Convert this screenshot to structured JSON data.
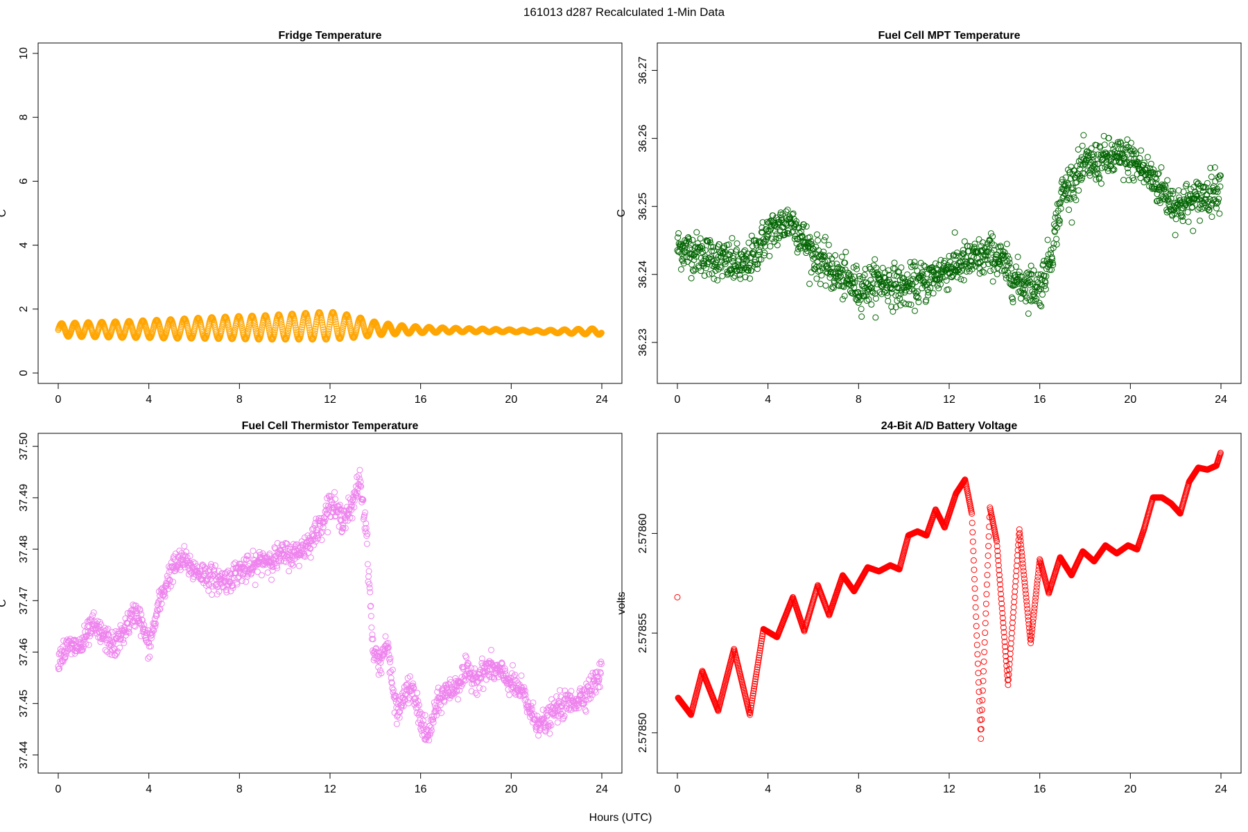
{
  "figure": {
    "title": "161013   d287   Recalculated 1-Min Data",
    "xlabel": "Hours (UTC)"
  },
  "chart_data": [
    {
      "type": "scatter",
      "id": "fridge",
      "title": "Fridge Temperature",
      "xlabel": "Hours (UTC)",
      "ylabel": "C",
      "color": "#ffa500",
      "xlim": [
        0,
        24
      ],
      "ylim": [
        0,
        10
      ],
      "xticks": [
        0,
        4,
        8,
        12,
        16,
        20,
        24
      ],
      "xtick_labels": [
        "0",
        "4",
        "8",
        "12",
        "16",
        "20",
        "24"
      ],
      "yticks": [
        0,
        2,
        4,
        6,
        8,
        10
      ],
      "ytick_labels": [
        "0",
        "2",
        "4",
        "6",
        "8",
        "10"
      ],
      "description": "Oscillating between about 1.1 and 1.9 C, widest near 12 h, narrowing to about 1.2-1.4 C after 16 h",
      "x": [
        0,
        1,
        2,
        3,
        4,
        5,
        6,
        7,
        8,
        9,
        10,
        11,
        12,
        13,
        14,
        15,
        16,
        17,
        18,
        19,
        20,
        21,
        22,
        23,
        24
      ],
      "y_upper": [
        1.55,
        1.58,
        1.6,
        1.62,
        1.65,
        1.68,
        1.72,
        1.75,
        1.78,
        1.8,
        1.84,
        1.88,
        1.92,
        1.8,
        1.6,
        1.5,
        1.45,
        1.42,
        1.4,
        1.38,
        1.36,
        1.34,
        1.35,
        1.38,
        1.4
      ],
      "y_lower": [
        1.15,
        1.13,
        1.12,
        1.1,
        1.1,
        1.08,
        1.08,
        1.07,
        1.06,
        1.05,
        1.05,
        1.05,
        1.05,
        1.1,
        1.18,
        1.22,
        1.25,
        1.27,
        1.28,
        1.28,
        1.28,
        1.27,
        1.25,
        1.22,
        1.2
      ]
    },
    {
      "type": "scatter",
      "id": "mpt",
      "title": "Fuel Cell MPT Temperature",
      "xlabel": "Hours (UTC)",
      "ylabel": "C",
      "color": "#006400",
      "xlim": [
        0,
        24
      ],
      "ylim": [
        36.2255,
        36.2725
      ],
      "xticks": [
        0,
        4,
        8,
        12,
        16,
        20,
        24
      ],
      "xtick_labels": [
        "0",
        "4",
        "8",
        "12",
        "16",
        "20",
        "24"
      ],
      "yticks": [
        36.23,
        36.24,
        36.25,
        36.26,
        36.27
      ],
      "ytick_labels": [
        "36.23",
        "36.24",
        "36.25",
        "36.26",
        "36.27"
      ],
      "x": [
        0,
        1,
        2,
        3,
        4,
        5,
        6,
        7,
        8,
        9,
        10,
        11,
        12,
        13,
        14,
        15,
        16,
        16.5,
        17,
        18,
        19,
        20,
        21,
        22,
        23,
        24
      ],
      "y": [
        36.244,
        36.243,
        36.242,
        36.241,
        36.246,
        36.248,
        36.243,
        36.24,
        36.238,
        36.239,
        36.238,
        36.239,
        36.241,
        36.242,
        36.243,
        36.239,
        36.238,
        36.243,
        36.252,
        36.256,
        36.257,
        36.257,
        36.254,
        36.25,
        36.251,
        36.253
      ],
      "noise": 0.003
    },
    {
      "type": "scatter",
      "id": "thermistor",
      "title": "Fuel Cell Thermistor Temperature",
      "xlabel": "Hours (UTC)",
      "ylabel": "C",
      "color": "#ee82ee",
      "xlim": [
        0,
        24
      ],
      "ylim": [
        37.4385,
        37.5005
      ],
      "xticks": [
        0,
        4,
        8,
        12,
        16,
        20,
        24
      ],
      "xtick_labels": [
        "0",
        "4",
        "8",
        "12",
        "16",
        "20",
        "24"
      ],
      "yticks": [
        37.44,
        37.45,
        37.46,
        37.47,
        37.48,
        37.49,
        37.5
      ],
      "ytick_labels": [
        "37.44",
        "37.45",
        "37.46",
        "37.47",
        "37.48",
        "37.49",
        "37.50"
      ],
      "x": [
        0,
        0.5,
        1,
        1.5,
        2,
        2.5,
        3,
        3.5,
        4,
        4.5,
        5,
        5.5,
        6,
        6.5,
        7,
        7.5,
        8,
        8.5,
        9,
        9.5,
        10,
        10.5,
        11,
        11.5,
        12,
        12.5,
        13,
        13.3,
        13.6,
        13.9,
        14.2,
        14.5,
        14.8,
        15,
        15.3,
        15.6,
        16,
        16.3,
        16.6,
        17,
        17.5,
        18,
        18.5,
        19,
        19.5,
        20,
        20.5,
        21,
        21.5,
        22,
        22.5,
        23,
        23.5,
        24
      ],
      "y": [
        37.459,
        37.461,
        37.461,
        37.465,
        37.463,
        37.461,
        37.465,
        37.468,
        37.461,
        37.47,
        37.476,
        37.478,
        37.476,
        37.475,
        37.474,
        37.474,
        37.476,
        37.476,
        37.478,
        37.478,
        37.479,
        37.479,
        37.481,
        37.484,
        37.489,
        37.486,
        37.488,
        37.494,
        37.484,
        37.46,
        37.458,
        37.462,
        37.452,
        37.448,
        37.452,
        37.453,
        37.447,
        37.443,
        37.448,
        37.452,
        37.453,
        37.456,
        37.455,
        37.457,
        37.456,
        37.454,
        37.452,
        37.447,
        37.446,
        37.449,
        37.45,
        37.451,
        37.453,
        37.456
      ],
      "noise": 0.0025
    },
    {
      "type": "scatter",
      "id": "battery",
      "title": "24-Bit A/D Battery Voltage",
      "xlabel": "Hours (UTC)",
      "ylabel": "volts",
      "color": "#ff0000",
      "xlim": [
        0,
        24
      ],
      "ylim": [
        2.578485,
        2.578645
      ],
      "xticks": [
        0,
        4,
        8,
        12,
        16,
        20,
        24
      ],
      "xtick_labels": [
        "0",
        "4",
        "8",
        "12",
        "16",
        "20",
        "24"
      ],
      "yticks": [
        2.5785,
        2.57855,
        2.5786
      ],
      "ytick_labels": [
        "2.57850",
        "2.57855",
        "2.57860"
      ],
      "outlier": {
        "x": 0.0,
        "y": 2.578568
      },
      "x": [
        0,
        0.6,
        1.1,
        1.8,
        2.5,
        3.2,
        3.8,
        4.4,
        5.1,
        5.6,
        6.2,
        6.7,
        7.3,
        7.8,
        8.4,
        8.9,
        9.4,
        9.8,
        10.2,
        10.6,
        11.0,
        11.4,
        11.8,
        12.3,
        12.7,
        13.0,
        13.4,
        13.8,
        14.1,
        14.6,
        15.1,
        15.6,
        16.0,
        16.4,
        16.9,
        17.4,
        17.9,
        18.4,
        18.9,
        19.4,
        19.9,
        20.3,
        20.6,
        21.0,
        21.4,
        21.8,
        22.2,
        22.6,
        23.0,
        23.4,
        23.8,
        24.0
      ],
      "y": [
        2.578518,
        2.578509,
        2.578531,
        2.578511,
        2.578542,
        2.578509,
        2.578552,
        2.578548,
        2.578568,
        2.578551,
        2.578574,
        2.578559,
        2.578579,
        2.578571,
        2.578583,
        2.578581,
        2.578584,
        2.578582,
        2.578599,
        2.578601,
        2.578599,
        2.578612,
        2.578603,
        2.57862,
        2.578627,
        2.57861,
        2.578497,
        2.578613,
        2.578596,
        2.578524,
        2.578602,
        2.578545,
        2.578587,
        2.57857,
        2.578588,
        2.578579,
        2.578591,
        2.578586,
        2.578594,
        2.57859,
        2.578594,
        2.578592,
        2.578602,
        2.578618,
        2.578618,
        2.578615,
        2.57861,
        2.578626,
        2.578633,
        2.578632,
        2.578634,
        2.578641
      ]
    }
  ]
}
